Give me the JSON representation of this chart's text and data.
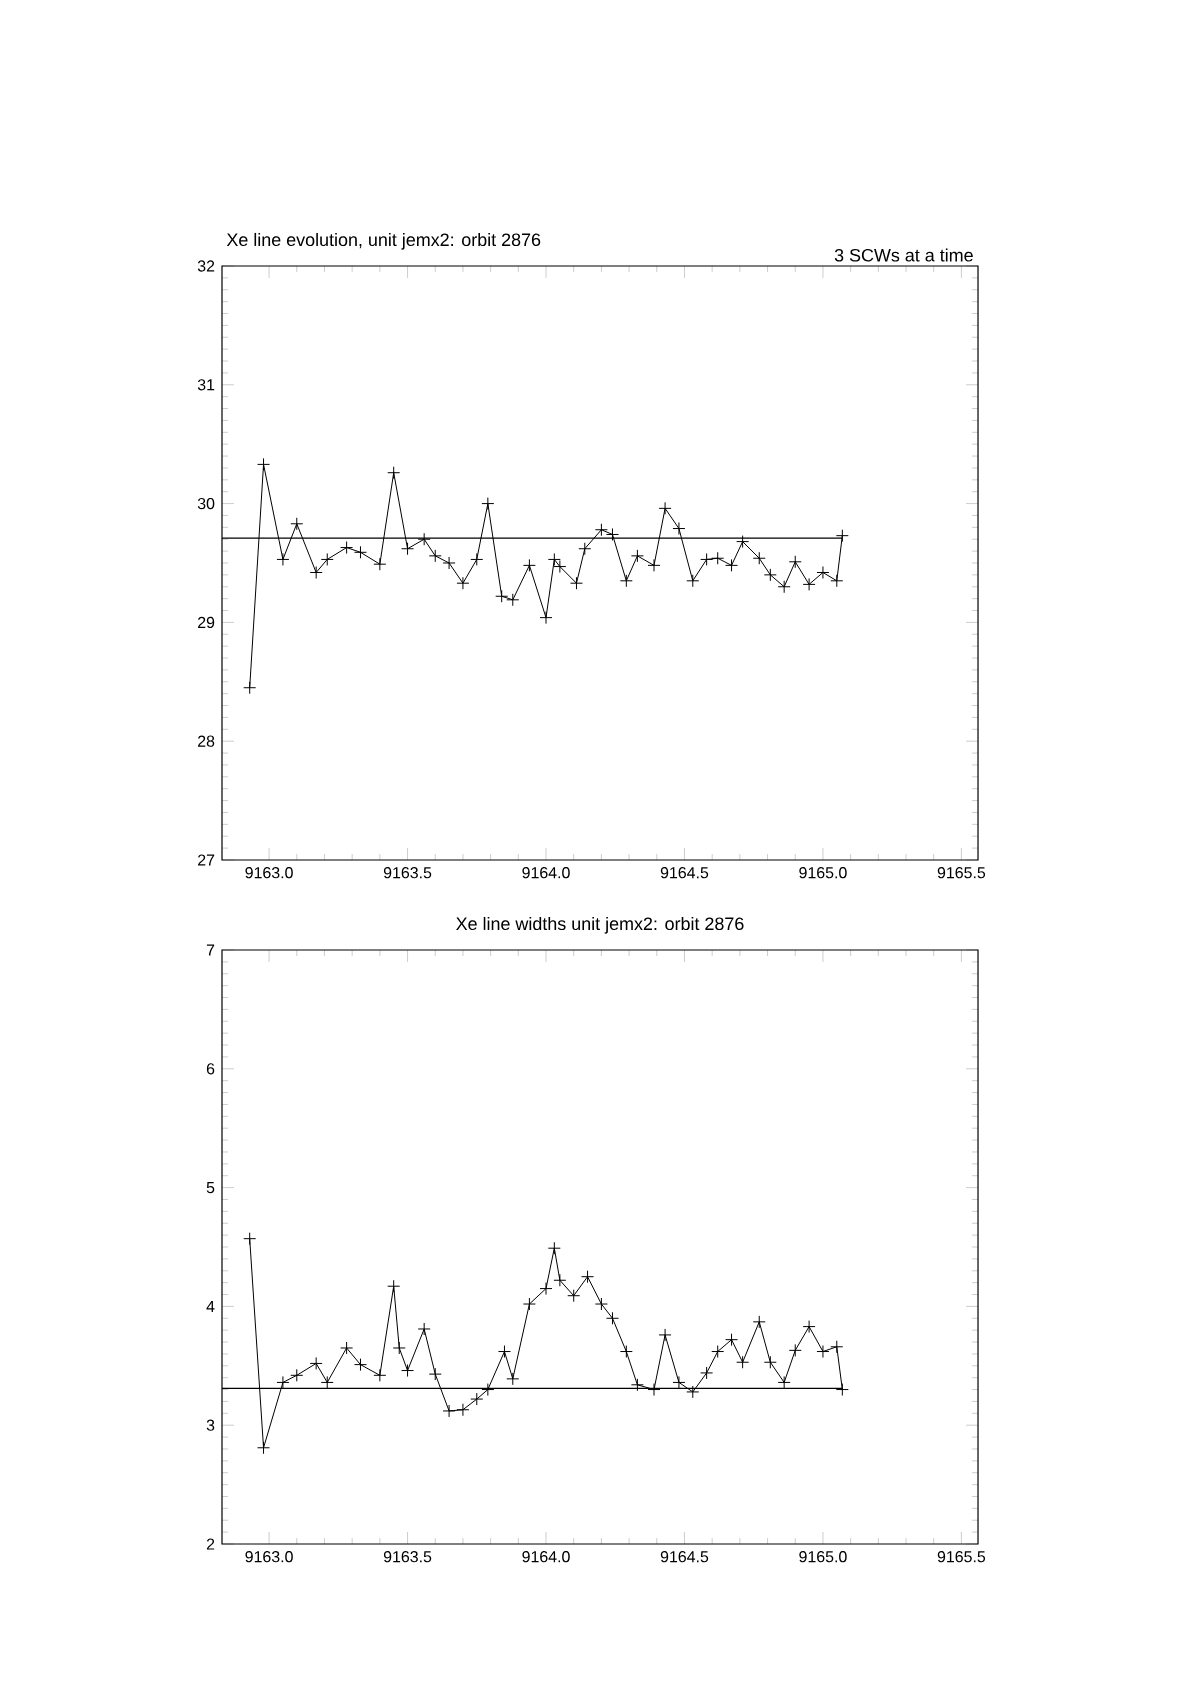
{
  "chart_data": [
    {
      "type": "line",
      "title": "Xe line evolution, unit jemx2: orbit 2876",
      "annotations": [
        "3 SCWs at a time"
      ],
      "marker": "cross",
      "line_style": "solid",
      "xlim": [
        9162.83,
        9165.56
      ],
      "ylim": [
        27,
        32
      ],
      "xticks": [
        {
          "value": 9163.0,
          "label": "9163.0"
        },
        {
          "value": 9163.5,
          "label": "9163.5"
        },
        {
          "value": 9164.0,
          "label": "9164.0"
        },
        {
          "value": 9164.5,
          "label": "9164.5"
        },
        {
          "value": 9165.0,
          "label": "9165.0"
        },
        {
          "value": 9165.5,
          "label": "9165.5"
        }
      ],
      "yticks": [
        27,
        28,
        29,
        30,
        31,
        32
      ],
      "ref_lines": [
        {
          "axis": "y",
          "value": 29.71
        }
      ],
      "series": [
        {
          "color": "#000000",
          "x": [
            9162.93,
            9162.98,
            9163.05,
            9163.1,
            9163.17,
            9163.21,
            9163.28,
            9163.33,
            9163.4,
            9163.45,
            9163.5,
            9163.56,
            9163.6,
            9163.65,
            9163.7,
            9163.75,
            9163.79,
            9163.84,
            9163.88,
            9163.94,
            9164.0,
            9164.03,
            9164.05,
            9164.11,
            9164.14,
            9164.2,
            9164.24,
            9164.29,
            9164.33,
            9164.39,
            9164.43,
            9164.48,
            9164.53,
            9164.58,
            9164.62,
            9164.67,
            9164.71,
            9164.77,
            9164.81,
            9164.86,
            9164.9,
            9164.95,
            9165.0,
            9165.05,
            9165.07
          ],
          "values": [
            28.45,
            30.33,
            29.53,
            29.83,
            29.42,
            29.53,
            29.63,
            29.59,
            29.49,
            30.26,
            29.62,
            29.7,
            29.56,
            29.5,
            29.33,
            29.53,
            30.0,
            29.22,
            29.19,
            29.48,
            29.04,
            29.53,
            29.47,
            29.33,
            29.62,
            29.78,
            29.74,
            29.35,
            29.56,
            29.48,
            29.96,
            29.79,
            29.35,
            29.53,
            29.54,
            29.48,
            29.68,
            29.54,
            29.4,
            29.3,
            29.51,
            29.32,
            29.42,
            29.35,
            29.73
          ]
        }
      ]
    },
    {
      "type": "line",
      "title": "Xe line widths unit jemx2: orbit 2876",
      "marker": "cross",
      "line_style": "solid",
      "xlim": [
        9162.83,
        9165.56
      ],
      "ylim": [
        2,
        7
      ],
      "xticks": [
        {
          "value": 9163.0,
          "label": "9163.0"
        },
        {
          "value": 9163.5,
          "label": "9163.5"
        },
        {
          "value": 9164.0,
          "label": "9164.0"
        },
        {
          "value": 9164.5,
          "label": "9164.5"
        },
        {
          "value": 9165.0,
          "label": "9165.0"
        },
        {
          "value": 9165.5,
          "label": "9165.5"
        }
      ],
      "yticks": [
        2,
        3,
        4,
        5,
        6,
        7
      ],
      "ref_lines": [
        {
          "axis": "y",
          "value": 3.31
        }
      ],
      "series": [
        {
          "color": "#000000",
          "x": [
            9162.93,
            9162.98,
            9163.05,
            9163.1,
            9163.17,
            9163.21,
            9163.28,
            9163.33,
            9163.4,
            9163.45,
            9163.47,
            9163.5,
            9163.56,
            9163.6,
            9163.65,
            9163.7,
            9163.75,
            9163.79,
            9163.85,
            9163.88,
            9163.94,
            9164.0,
            9164.03,
            9164.05,
            9164.1,
            9164.15,
            9164.2,
            9164.24,
            9164.29,
            9164.33,
            9164.39,
            9164.43,
            9164.48,
            9164.53,
            9164.58,
            9164.62,
            9164.67,
            9164.71,
            9164.77,
            9164.81,
            9164.86,
            9164.9,
            9164.95,
            9165.0,
            9165.05,
            9165.07
          ],
          "values": [
            4.57,
            2.81,
            3.36,
            3.42,
            3.52,
            3.36,
            3.65,
            3.51,
            3.42,
            4.17,
            3.65,
            3.46,
            3.81,
            3.43,
            3.12,
            3.13,
            3.22,
            3.3,
            3.62,
            3.39,
            4.02,
            4.15,
            4.49,
            4.22,
            4.09,
            4.25,
            4.02,
            3.9,
            3.62,
            3.34,
            3.3,
            3.76,
            3.36,
            3.28,
            3.44,
            3.62,
            3.72,
            3.53,
            3.87,
            3.53,
            3.36,
            3.63,
            3.83,
            3.62,
            3.66,
            3.3
          ]
        }
      ]
    }
  ]
}
